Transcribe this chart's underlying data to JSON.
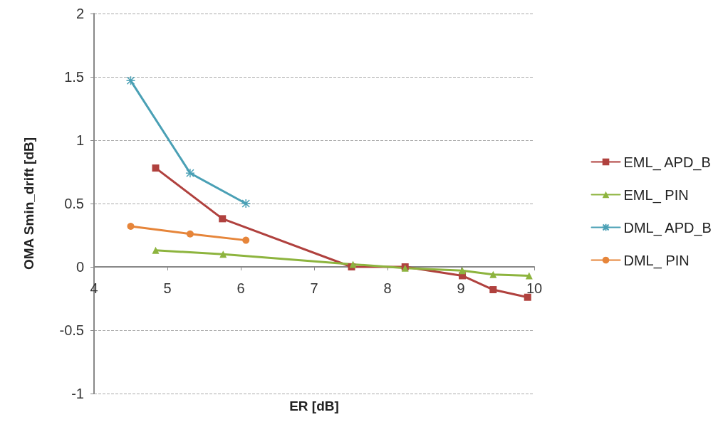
{
  "chart_data": {
    "type": "line",
    "xlabel": "ER [dB]",
    "ylabel": "OMA Smin_drift [dB]",
    "xlim": [
      4,
      10
    ],
    "xticks": [
      4,
      5,
      6,
      7,
      8,
      9,
      10
    ],
    "ylim": [
      -1,
      2
    ],
    "yticks": [
      -1,
      -0.5,
      0,
      0.5,
      1,
      1.5,
      2
    ],
    "grid": "y",
    "legend": "right",
    "series": [
      {
        "name": "EML_ APD_B",
        "color": "#b0413e",
        "marker": "square",
        "x": [
          4.84,
          5.75,
          7.51,
          8.24,
          9.02,
          9.44,
          9.91
        ],
        "values": [
          0.78,
          0.38,
          0,
          0,
          -0.07,
          -0.18,
          -0.24
        ]
      },
      {
        "name": "EML_ PIN",
        "color": "#8db43e",
        "marker": "triangle",
        "x": [
          4.84,
          5.76,
          7.53,
          8.24,
          9.02,
          9.44,
          9.93
        ],
        "values": [
          0.13,
          0.1,
          0.02,
          -0.01,
          -0.03,
          -0.06,
          -0.07
        ]
      },
      {
        "name": "DML_ APD_B",
        "color": "#4aa0b5",
        "marker": "cross",
        "x": [
          4.5,
          5.31,
          6.07
        ],
        "values": [
          1.47,
          0.74,
          0.5
        ]
      },
      {
        "name": "DML_ PIN",
        "color": "#e6853a",
        "marker": "circle",
        "x": [
          4.5,
          5.31,
          6.07
        ],
        "values": [
          0.32,
          0.26,
          0.21
        ]
      }
    ]
  }
}
